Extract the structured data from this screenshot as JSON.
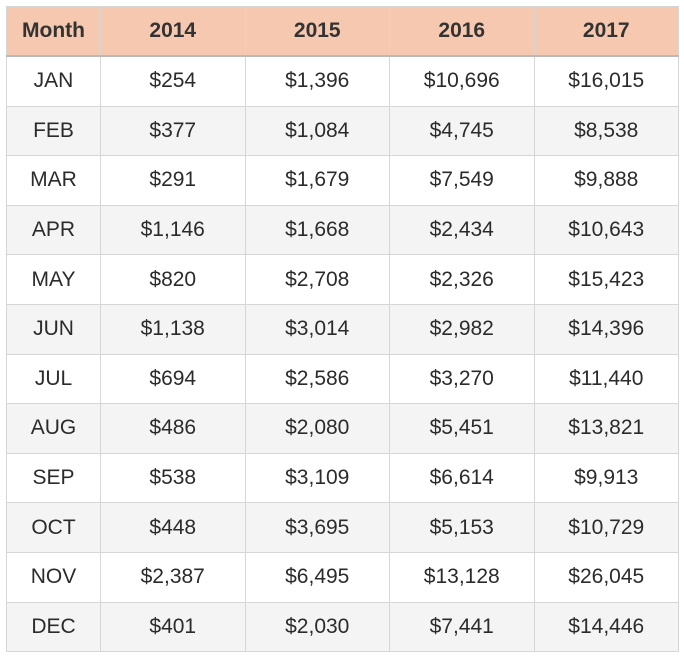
{
  "table": {
    "headers": [
      "Month",
      "2014",
      "2015",
      "2016",
      "2017"
    ],
    "rows": [
      [
        "JAN",
        "$254",
        "$1,396",
        "$10,696",
        "$16,015"
      ],
      [
        "FEB",
        "$377",
        "$1,084",
        "$4,745",
        "$8,538"
      ],
      [
        "MAR",
        "$291",
        "$1,679",
        "$7,549",
        "$9,888"
      ],
      [
        "APR",
        "$1,146",
        "$1,668",
        "$2,434",
        "$10,643"
      ],
      [
        "MAY",
        "$820",
        "$2,708",
        "$2,326",
        "$15,423"
      ],
      [
        "JUN",
        "$1,138",
        "$3,014",
        "$2,982",
        "$14,396"
      ],
      [
        "JUL",
        "$694",
        "$2,586",
        "$3,270",
        "$11,440"
      ],
      [
        "AUG",
        "$486",
        "$2,080",
        "$5,451",
        "$13,821"
      ],
      [
        "SEP",
        "$538",
        "$3,109",
        "$6,614",
        "$9,913"
      ],
      [
        "OCT",
        "$448",
        "$3,695",
        "$5,153",
        "$10,729"
      ],
      [
        "NOV",
        "$2,387",
        "$6,495",
        "$13,128",
        "$26,045"
      ],
      [
        "DEC",
        "$401",
        "$2,030",
        "$7,441",
        "$14,446"
      ]
    ]
  },
  "colors": {
    "header_background": "#f6c8b0",
    "row_stripe": "#f4f4f4",
    "border": "#d6d6d6"
  }
}
